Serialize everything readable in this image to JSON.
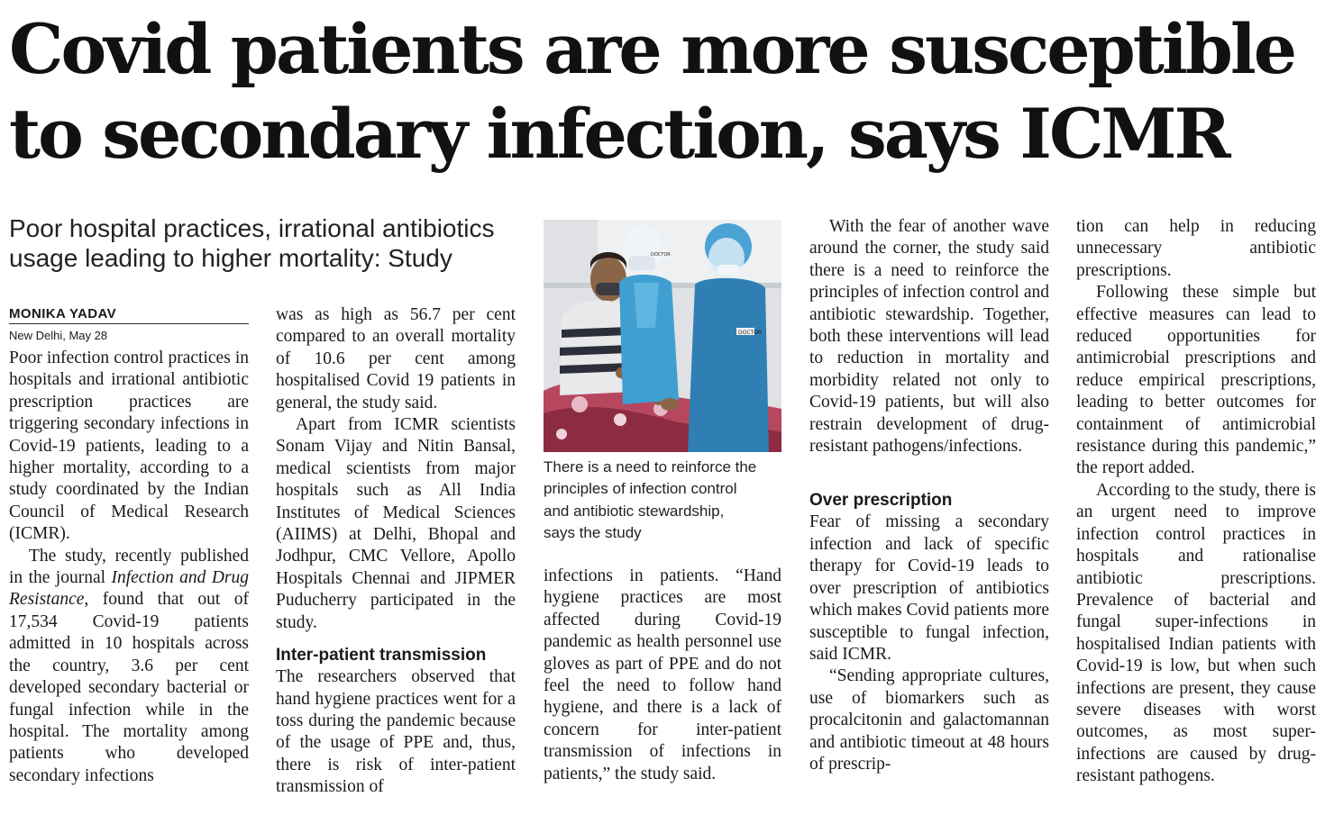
{
  "headline": {
    "line1": "Covid patients are more susceptible",
    "line2": "to secondary infection, says ICMR"
  },
  "deck": {
    "line1": "Poor hospital practices, irrational antibiotics",
    "line2": "usage leading to higher mortality: Study"
  },
  "byline": "MONIKA YADAV",
  "dateline": "New Delhi, May 28",
  "photo": {
    "badge_1": "DOCTOR",
    "badge_2": "DOCTOR"
  },
  "caption": {
    "line1": "There is a need to reinforce the",
    "line2": "principles of infection control",
    "line3": "and antibiotic stewardship,",
    "line4": "says the study"
  },
  "article": {
    "col1": {
      "p1": "Poor infection control practices in hospitals and irrational antibiotic prescription practices are triggering secondary infections in Covid-19 patients, leading to a higher mortality, according to a study coordinated by the Indian Council of Medical Research (ICMR).",
      "p2a": "The study, recently published in the journal ",
      "p2_journal": "Infection and Drug Resistance,",
      "p2b": " found that out of 17,534 Covid-19 patients admitted in 10 hospitals across the country, 3.6 per cent developed secondary bacterial or fungal infection while in the hospital. The mortality among patients who developed secondary infections"
    },
    "col2": {
      "p1": "was as high as 56.7 per cent compared to an overall mortality of 10.6 per cent among hospitalised Covid 19 patients in general, the study said.",
      "p2": "Apart from ICMR scientists Sonam Vijay and Nitin Bansal, medical scientists from major hospitals such as All India Institutes of Medical Sciences (AIIMS) at Delhi, Bhopal and Jodhpur, CMC Vellore, Apollo Hospitals Chennai and JIPMER Puducherry participated in the study.",
      "subhead": "Inter-patient transmission",
      "p3": "The researchers observed that hand hygiene practices went for a toss during the pandemic because of the usage of PPE and, thus, there is risk of inter-patient transmission of"
    },
    "col3": {
      "p1": "infections in patients. “Hand hygiene practices are most affected during Covid-19 pandemic as health personnel use gloves as part of PPE and do not feel the need to follow hand hygiene, and there is a lack of concern for inter-patient transmission of infections in patients,” the study said."
    },
    "col4": {
      "p1": "With the fear of another wave around the corner, the study said there is a need to reinforce the principles of infection control and antibiotic stewardship. Together, both these interventions will lead to reduction in mortality and morbidity related not only to Covid-19 patients, but will also restrain development of drug-resistant pathogens/infections.",
      "subhead": "Over prescription",
      "p2": "Fear of missing a secondary infection and lack of specific therapy for Covid-19 leads to over prescription of antibiotics which makes Covid patients more susceptible to fungal infection, said ICMR.",
      "p3": "“Sending appropriate cultures, use of biomarkers such as procalcitonin and galactomannan and antibiotic timeout at 48 hours of prescrip-"
    },
    "col5": {
      "p1": "tion can help in reducing unnecessary antibiotic prescriptions.",
      "p2": "Following these simple but effective measures can lead to reduced opportunities for antimicrobial prescriptions and reduce empirical prescriptions, leading to better outcomes for containment of antimicrobial resistance during this pandemic,” the report added.",
      "p3": "According to the study, there is an urgent need to improve infection control practices in hospitals and rationalise antibiotic prescriptions. Prevalence of bacterial and fungal super-infections in hospitalised Indian patients with Covid-19 is low, but when such infections are present, they cause severe diseases with worst outcomes, as most super-infections are caused by drug-resistant pathogens."
    }
  }
}
